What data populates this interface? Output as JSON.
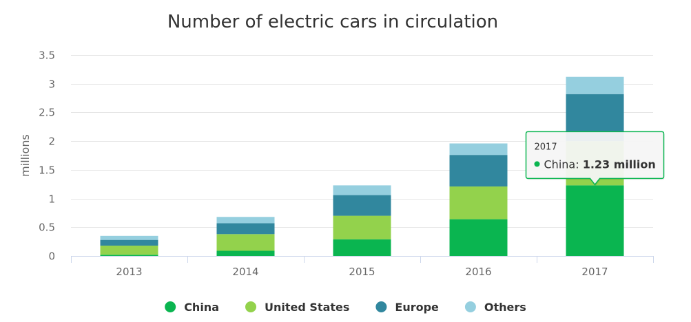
{
  "chart_data": {
    "type": "bar",
    "stacked": true,
    "title": "Number of electric cars in circulation",
    "ylabel": "millions",
    "xlabel": "",
    "categories": [
      "2013",
      "2014",
      "2015",
      "2016",
      "2017"
    ],
    "ylim": [
      0,
      3.5
    ],
    "yticks": [
      0,
      0.5,
      1,
      1.5,
      2,
      2.5,
      3,
      3.5
    ],
    "ytick_labels": [
      "0",
      "0.5",
      "1",
      "1.5",
      "2",
      "2.5",
      "3",
      "3.5"
    ],
    "grid": true,
    "legend_position": "bottom",
    "series": [
      {
        "name": "China",
        "color": "#0ab550",
        "values": [
          0.02,
          0.09,
          0.29,
          0.64,
          1.23
        ]
      },
      {
        "name": "United States",
        "color": "#93d24c",
        "values": [
          0.16,
          0.29,
          0.41,
          0.57,
          0.77
        ]
      },
      {
        "name": "Europe",
        "color": "#31879e",
        "values": [
          0.1,
          0.19,
          0.36,
          0.55,
          0.82
        ]
      },
      {
        "name": "Others",
        "color": "#95cfdf",
        "values": [
          0.07,
          0.11,
          0.17,
          0.2,
          0.3
        ]
      }
    ],
    "tooltip": {
      "category": "2017",
      "series": "China",
      "series_label": "China:",
      "value_label": "1.23 million",
      "border_color": "#0ab550"
    }
  }
}
